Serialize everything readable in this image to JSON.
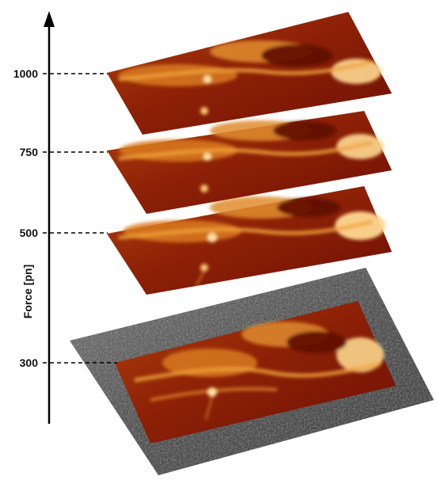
{
  "axis": {
    "title": "Force [pn]",
    "ticks": [
      {
        "label": "1000",
        "value": 1000
      },
      {
        "label": "750",
        "value": 750
      },
      {
        "label": "500",
        "value": 500
      },
      {
        "label": "300",
        "value": 300
      }
    ]
  },
  "layers": [
    {
      "name": "afm-layer-1000",
      "force": 1000
    },
    {
      "name": "afm-layer-750",
      "force": 750
    },
    {
      "name": "afm-layer-500",
      "force": 500
    },
    {
      "name": "afm-layer-300",
      "force": 300,
      "substrate": true
    }
  ],
  "colors": {
    "surface_dark": "#7a1205",
    "surface_mid": "#b8440c",
    "surface_light": "#f0a23a",
    "highlight": "#ffe2a0",
    "substrate": "#4a4a4a",
    "axis": "#000000"
  }
}
